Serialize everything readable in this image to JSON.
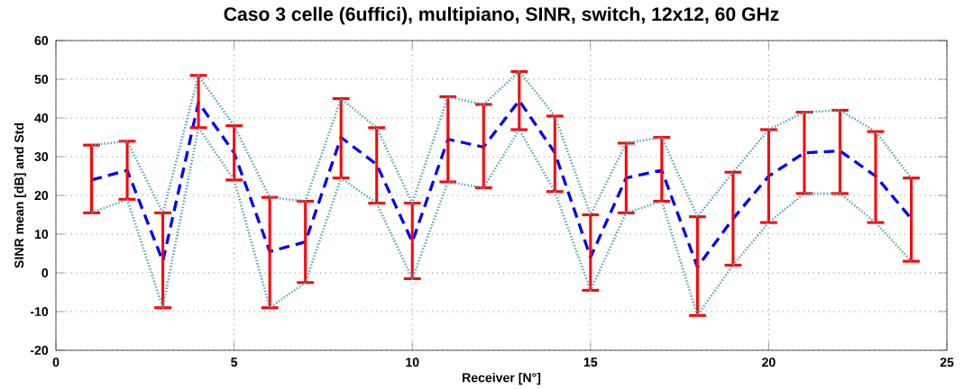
{
  "chart_data": {
    "type": "line",
    "title": "Caso 3 celle (6uffici), multipiano, SINR, switch, 12x12, 60 GHz",
    "xlabel": "Receiver [N°]",
    "ylabel": "SINR mean [dB] and Std",
    "x": [
      1,
      2,
      3,
      4,
      5,
      6,
      7,
      8,
      9,
      10,
      11,
      12,
      13,
      14,
      15,
      16,
      17,
      18,
      19,
      20,
      21,
      22,
      23,
      24
    ],
    "series": [
      {
        "color": "#0000ff",
        "line_style": "dashed",
        "values": [
          24,
          26.5,
          3,
          44,
          31,
          5.5,
          8,
          35,
          28,
          8,
          34.5,
          32.5,
          44.5,
          31,
          4,
          24.5,
          26.5,
          1.5,
          14,
          25,
          31,
          31.5,
          25,
          14
        ],
        "errors": [
          [
            15.5,
            33
          ],
          [
            19,
            34
          ],
          [
            -9,
            15.5
          ],
          [
            37.5,
            51
          ],
          [
            24,
            38
          ],
          [
            -9,
            19.5
          ],
          [
            -2.5,
            18.5
          ],
          [
            24.5,
            45
          ],
          [
            18,
            37.5
          ],
          [
            -1.5,
            18
          ],
          [
            23.5,
            45.5
          ],
          [
            22,
            43.5
          ],
          [
            37,
            52
          ],
          [
            21,
            40.5
          ],
          [
            -4.5,
            15
          ],
          [
            15.5,
            33.5
          ],
          [
            18.5,
            35
          ],
          [
            -11,
            14.5
          ],
          [
            2,
            26
          ],
          [
            13,
            37
          ],
          [
            20.5,
            41.5
          ],
          [
            20.5,
            42
          ],
          [
            13,
            36.5
          ],
          [
            3,
            24.5
          ]
        ]
      },
      {
        "color": "#4fa3b3",
        "line_style": "dotted",
        "values": [
          33,
          34,
          15.5,
          51,
          38,
          19.5,
          18.5,
          45,
          37.5,
          18,
          45.5,
          43.5,
          52,
          40.5,
          15,
          33.5,
          35,
          14.5,
          26,
          37,
          41.5,
          42,
          36.5,
          24.5
        ]
      },
      {
        "color": "#4fa3b3",
        "line_style": "dotted",
        "values": [
          15.5,
          19,
          -9,
          37.5,
          24,
          -9,
          -2.5,
          24.5,
          18,
          -1.5,
          23.5,
          22,
          37,
          21,
          -4.5,
          15.5,
          18.5,
          -11,
          2,
          13,
          20.5,
          20.5,
          13,
          3
        ]
      }
    ],
    "xlim": [
      0,
      25
    ],
    "xticks": [
      0,
      5,
      10,
      15,
      20,
      25
    ],
    "ylim": [
      -20,
      60
    ],
    "yticks": [
      -20,
      -10,
      0,
      10,
      20,
      30,
      40,
      50,
      60
    ],
    "grid": true,
    "marker": "none"
  }
}
